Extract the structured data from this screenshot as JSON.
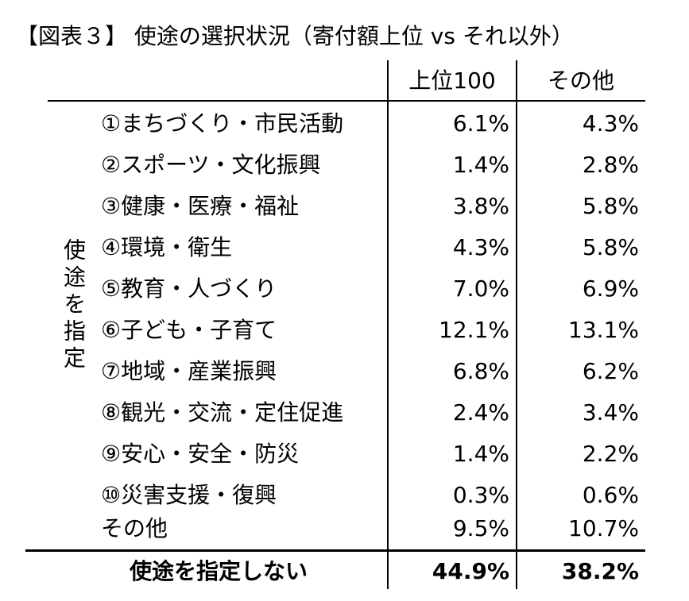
{
  "title": "【図表３】 使途の選択状況（寄付額上位 vs それ以外）",
  "table": {
    "columns": [
      "上位100",
      "その他"
    ],
    "group_label": "使途を指定",
    "rows": [
      {
        "label": "①まちづくり・市民活動",
        "top100": "6.1%",
        "other": "4.3%"
      },
      {
        "label": "②スポーツ・文化振興",
        "top100": "1.4%",
        "other": "2.8%"
      },
      {
        "label": "③健康・医療・福祉",
        "top100": "3.8%",
        "other": "5.8%"
      },
      {
        "label": "④環境・衛生",
        "top100": "4.3%",
        "other": "5.8%"
      },
      {
        "label": "⑤教育・人づくり",
        "top100": "7.0%",
        "other": "6.9%"
      },
      {
        "label": "⑥子ども・子育て",
        "top100": "12.1%",
        "other": "13.1%"
      },
      {
        "label": "⑦地域・産業振興",
        "top100": "6.8%",
        "other": "6.2%"
      },
      {
        "label": "⑧観光・交流・定住促進",
        "top100": "2.4%",
        "other": "3.4%"
      },
      {
        "label": "⑨安心・安全・防災",
        "top100": "1.4%",
        "other": "2.2%"
      },
      {
        "label": "⑩災害支援・復興",
        "top100": "0.3%",
        "other": "0.6%"
      },
      {
        "label": "その他",
        "top100": "9.5%",
        "other": "10.7%"
      }
    ],
    "total": {
      "label": "使途を指定しない",
      "top100": "44.9%",
      "other": "38.2%"
    }
  }
}
